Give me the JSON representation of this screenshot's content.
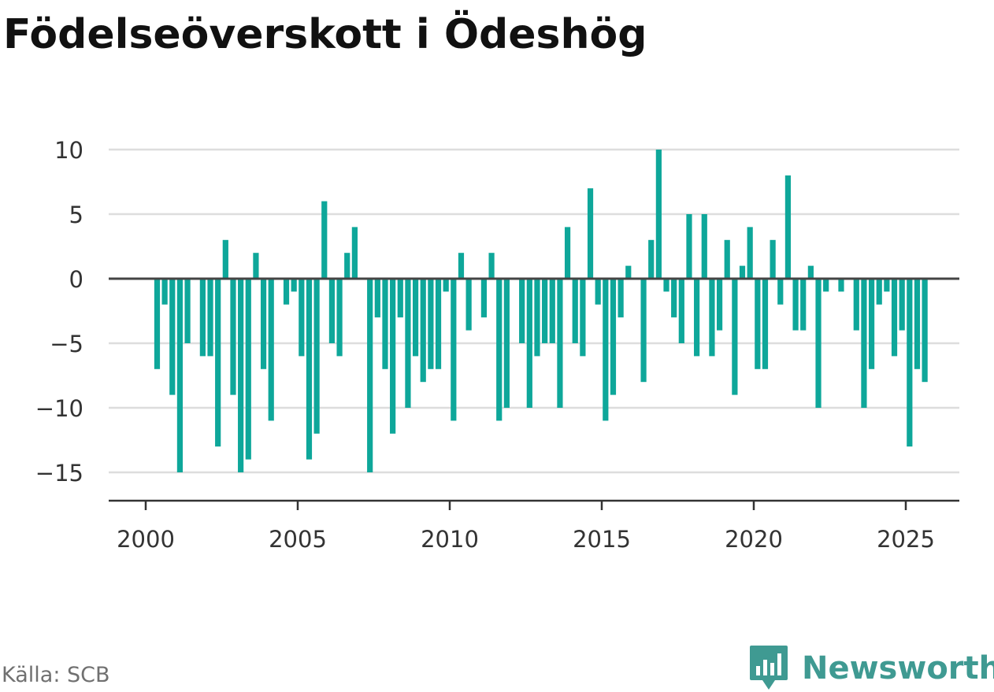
{
  "title": "Födelseöverskott i Ödeshög",
  "source": "Källa: SCB",
  "brand": {
    "name": "Newsworthy",
    "icon": "newsworthy-logo-icon",
    "color": "#3f9a92"
  },
  "colors": {
    "bar": "#0ea79a",
    "grid": "#dddddd",
    "zero_line": "#444444",
    "axis": "#333333",
    "text": "#333333"
  },
  "chart_data": {
    "type": "bar",
    "title": "Födelseöverskott i Ödeshög",
    "xlabel": "",
    "ylabel": "",
    "frequency": "quarterly",
    "start_period": "2000 Q2",
    "x_ticks": [
      2000,
      2005,
      2010,
      2015,
      2020,
      2025
    ],
    "y_ticks": [
      10,
      5,
      0,
      -5,
      -10,
      -15
    ],
    "y_tick_labels": [
      "10",
      "5",
      "0",
      "−5",
      "−10",
      "−15"
    ],
    "ylim": [
      -17,
      11
    ],
    "grid": true,
    "values": [
      -7,
      -2,
      -9,
      -15,
      -5,
      0,
      -6,
      -6,
      -13,
      3,
      -9,
      -15,
      -14,
      2,
      -7,
      -11,
      0,
      -2,
      -1,
      -6,
      -14,
      -12,
      6,
      -5,
      -6,
      2,
      4,
      0,
      -15,
      -3,
      -7,
      -12,
      -3,
      -10,
      -6,
      -8,
      -7,
      -7,
      -1,
      -11,
      2,
      -4,
      0,
      -3,
      2,
      -11,
      -10,
      0,
      -5,
      -10,
      -6,
      -5,
      -5,
      -10,
      4,
      -5,
      -6,
      7,
      -2,
      -11,
      -9,
      -3,
      1,
      0,
      -8,
      3,
      10,
      -1,
      -3,
      -5,
      5,
      -6,
      5,
      -6,
      -4,
      3,
      -9,
      1,
      4,
      -7,
      -7,
      3,
      -2,
      8,
      -4,
      -4,
      1,
      -10,
      -1,
      0,
      -1,
      0,
      -4,
      -10,
      -7,
      -2,
      -1,
      -6,
      -4,
      -13,
      -7,
      -8
    ]
  }
}
